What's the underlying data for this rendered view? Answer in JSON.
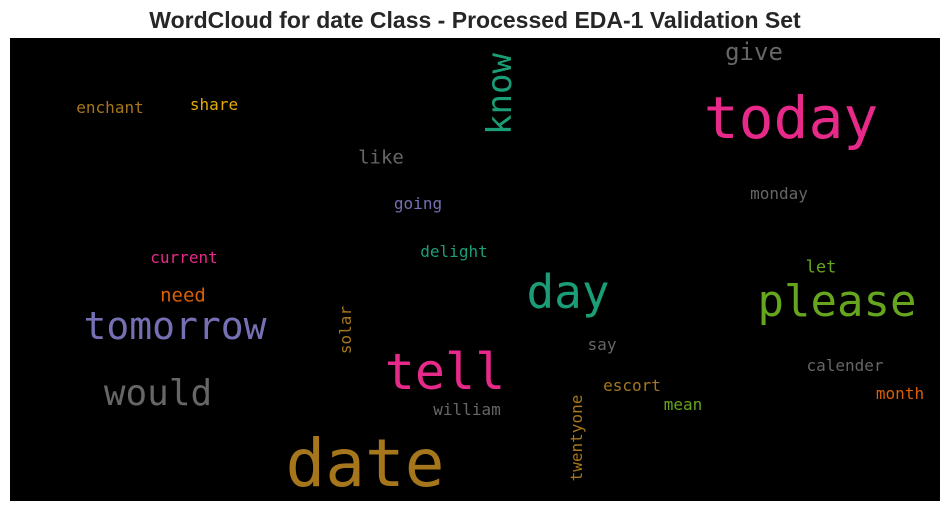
{
  "title": "WordCloud for date Class - Processed EDA-1 Validation Set",
  "colors": {
    "background": "#000000",
    "title": "#262626"
  },
  "words": [
    {
      "text": "date",
      "color": "#a6761d",
      "rotated": false
    },
    {
      "text": "today",
      "color": "#e7298a",
      "rotated": false
    },
    {
      "text": "tell",
      "color": "#e7298a",
      "rotated": false
    },
    {
      "text": "tomorrow",
      "color": "#7570b3",
      "rotated": false
    },
    {
      "text": "please",
      "color": "#66a61e",
      "rotated": false
    },
    {
      "text": "day",
      "color": "#1b9e77",
      "rotated": false
    },
    {
      "text": "would",
      "color": "#666666",
      "rotated": false
    },
    {
      "text": "know",
      "color": "#1b9e77",
      "rotated": true
    },
    {
      "text": "give",
      "color": "#666666",
      "rotated": false
    },
    {
      "text": "like",
      "color": "#666666",
      "rotated": false
    },
    {
      "text": "need",
      "color": "#d95f02",
      "rotated": false
    },
    {
      "text": "enchant",
      "color": "#a6761d",
      "rotated": false
    },
    {
      "text": "share",
      "color": "#e6ab02",
      "rotated": false
    },
    {
      "text": "going",
      "color": "#7570b3",
      "rotated": false
    },
    {
      "text": "monday",
      "color": "#666666",
      "rotated": false
    },
    {
      "text": "delight",
      "color": "#1b9e77",
      "rotated": false
    },
    {
      "text": "current",
      "color": "#e7298a",
      "rotated": false
    },
    {
      "text": "let",
      "color": "#66a61e",
      "rotated": false
    },
    {
      "text": "solar",
      "color": "#a6761d",
      "rotated": true
    },
    {
      "text": "say",
      "color": "#666666",
      "rotated": false
    },
    {
      "text": "calender",
      "color": "#666666",
      "rotated": false
    },
    {
      "text": "escort",
      "color": "#a6761d",
      "rotated": false
    },
    {
      "text": "month",
      "color": "#d95f02",
      "rotated": false
    },
    {
      "text": "mean",
      "color": "#66a61e",
      "rotated": false
    },
    {
      "text": "william",
      "color": "#666666",
      "rotated": false
    },
    {
      "text": "twentyone",
      "color": "#a6761d",
      "rotated": true
    }
  ]
}
